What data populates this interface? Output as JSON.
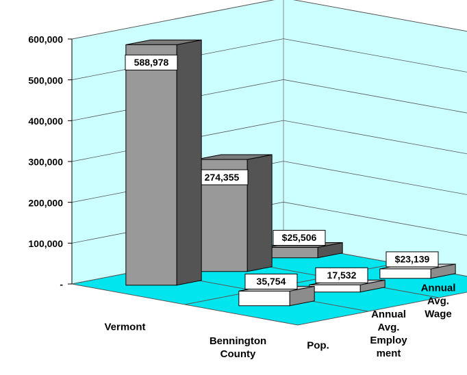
{
  "chart_data": {
    "type": "bar3d",
    "categories": [
      "Vermont",
      "Bennington County"
    ],
    "category_colors": [
      "#999999",
      "#ffffff"
    ],
    "series": [
      {
        "name": "Pop.",
        "values": [
          588978,
          35754
        ],
        "value_labels": [
          "588,978",
          "35,754"
        ]
      },
      {
        "name": "Annual Avg. Employ ment",
        "values": [
          274355,
          17532
        ],
        "value_labels": [
          "274,355",
          "17,532"
        ]
      },
      {
        "name": "Annual Avg. Wage",
        "values": [
          25506,
          23139
        ],
        "value_labels": [
          "$25,506",
          "$23,139"
        ]
      }
    ],
    "ylim": [
      0,
      600000
    ],
    "yticks": [
      {
        "value": 0,
        "label": "-"
      },
      {
        "value": 100000,
        "label": "100,000"
      },
      {
        "value": 200000,
        "label": "200,000"
      },
      {
        "value": 300000,
        "label": "300,000"
      },
      {
        "value": 400000,
        "label": "400,000"
      },
      {
        "value": 500000,
        "label": "500,000"
      },
      {
        "value": 600000,
        "label": "600,000"
      }
    ],
    "grid": true
  }
}
